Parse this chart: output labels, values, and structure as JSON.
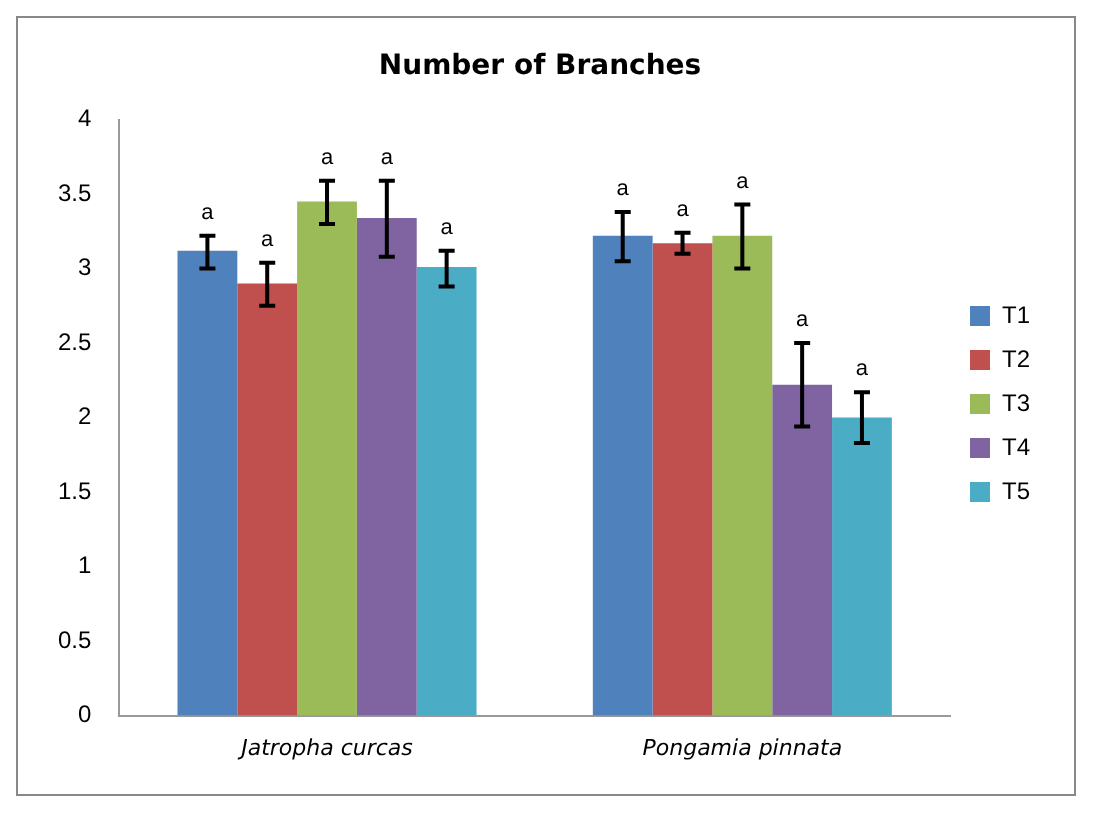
{
  "chart_data": {
    "type": "bar",
    "title": "Number of Branches",
    "categories": [
      "Jatropha curcas",
      "Pongamia pinnata"
    ],
    "series": [
      {
        "name": "T1",
        "color": "#4f81bd",
        "values": [
          3.12,
          3.22
        ],
        "errors": [
          [
            3.0,
            3.22
          ],
          [
            3.05,
            3.38
          ]
        ],
        "value_labels": [
          "a",
          "a"
        ]
      },
      {
        "name": "T2",
        "color": "#c0504d",
        "values": [
          2.9,
          3.17
        ],
        "errors": [
          [
            2.75,
            3.04
          ],
          [
            3.1,
            3.24
          ]
        ],
        "value_labels": [
          "a",
          "a"
        ]
      },
      {
        "name": "T3",
        "color": "#9bbb59",
        "values": [
          3.45,
          3.22
        ],
        "errors": [
          [
            3.3,
            3.59
          ],
          [
            3.0,
            3.43
          ]
        ],
        "value_labels": [
          "a",
          "a"
        ]
      },
      {
        "name": "T4",
        "color": "#8064a2",
        "values": [
          3.34,
          2.22
        ],
        "errors": [
          [
            3.08,
            3.59
          ],
          [
            1.94,
            2.5
          ]
        ],
        "value_labels": [
          "a",
          "a"
        ]
      },
      {
        "name": "T5",
        "color": "#4bacc6",
        "values": [
          3.01,
          2.0
        ],
        "errors": [
          [
            2.88,
            3.12
          ],
          [
            1.83,
            2.17
          ]
        ],
        "value_labels": [
          "a",
          "a"
        ]
      }
    ],
    "ylim": [
      0,
      4
    ],
    "yticks": [
      0,
      0.5,
      1,
      1.5,
      2,
      2.5,
      3,
      3.5,
      4
    ],
    "grid": false,
    "legend": "right"
  }
}
